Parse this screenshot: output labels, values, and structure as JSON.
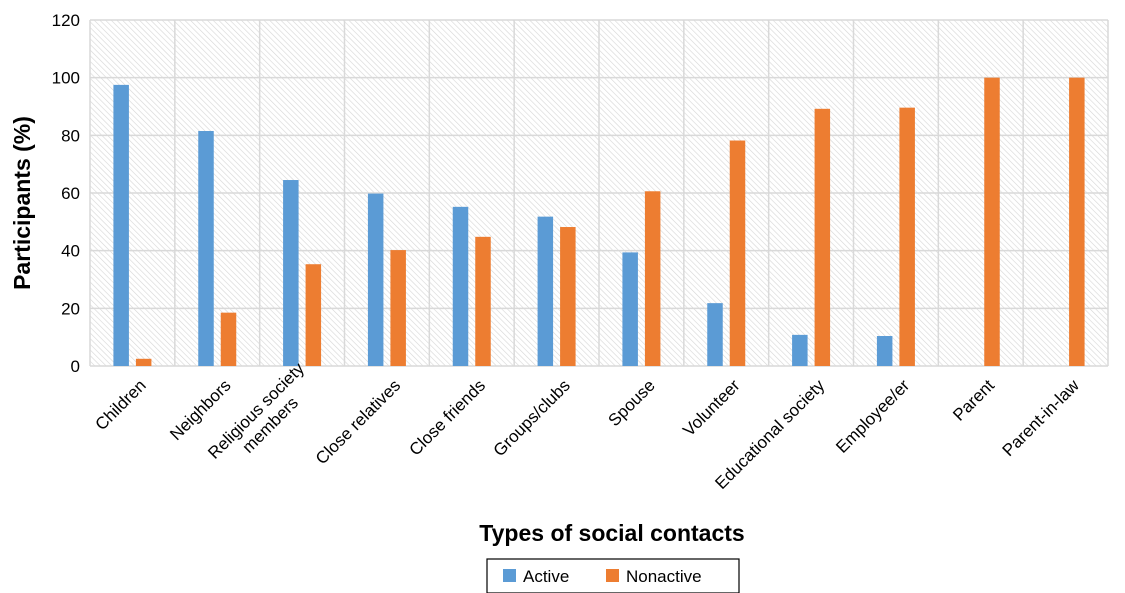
{
  "chart_data": {
    "type": "bar",
    "title": "",
    "xlabel": "Types of social contacts",
    "ylabel": "Participants (%)",
    "ylim": [
      0,
      120
    ],
    "yticks": [
      0,
      20,
      40,
      60,
      80,
      100,
      120
    ],
    "grid": true,
    "legend_position": "bottom",
    "categories": [
      [
        "Children"
      ],
      [
        "Neighbors"
      ],
      [
        "Religious society",
        "members"
      ],
      [
        "Close relatives"
      ],
      [
        "Close friends"
      ],
      [
        "Groups/clubs"
      ],
      [
        "Spouse"
      ],
      [
        "Volunteer"
      ],
      [
        "Educational society"
      ],
      [
        "Employee/er"
      ],
      [
        "Parent"
      ],
      [
        "Parent-in-law"
      ]
    ],
    "series": [
      {
        "name": "Active",
        "color": "#5b9bd5",
        "values": [
          97.5,
          81.5,
          64.5,
          59.8,
          55.2,
          51.8,
          39.4,
          21.8,
          10.8,
          10.4,
          0,
          0
        ]
      },
      {
        "name": "Nonactive",
        "color": "#ed7d31",
        "values": [
          2.5,
          18.5,
          35.3,
          40.2,
          44.8,
          48.2,
          60.6,
          78.2,
          89.2,
          89.6,
          100,
          100
        ]
      }
    ]
  }
}
